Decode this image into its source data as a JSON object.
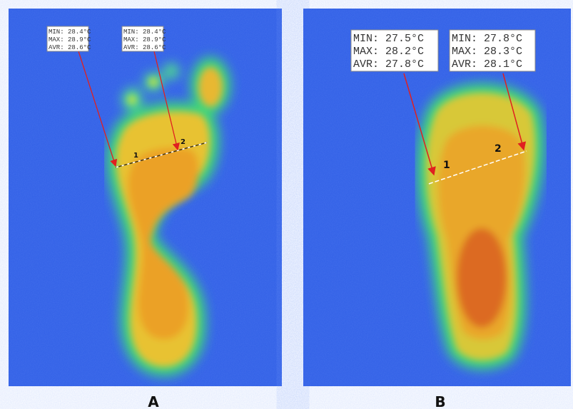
{
  "panels": [
    {
      "label": "A",
      "boxes": [
        {
          "lines": [
            "MIN: 28.4°C",
            "MAX: 28.9°C",
            "AVR: 28.6°C"
          ]
        },
        {
          "lines": [
            "MIN: 28.4°C",
            "MAX: 28.9°C",
            "AVR: 28.6°C"
          ]
        }
      ],
      "points": [
        "1",
        "2"
      ]
    },
    {
      "label": "B",
      "boxes": [
        {
          "lines": [
            "MIN: 27.5°C",
            "MAX: 28.2°C",
            "AVR: 27.8°C"
          ]
        },
        {
          "lines": [
            "MIN: 27.8°C",
            "MAX: 28.3°C",
            "AVR: 28.1°C"
          ]
        }
      ],
      "points": [
        "1",
        "2"
      ]
    }
  ]
}
